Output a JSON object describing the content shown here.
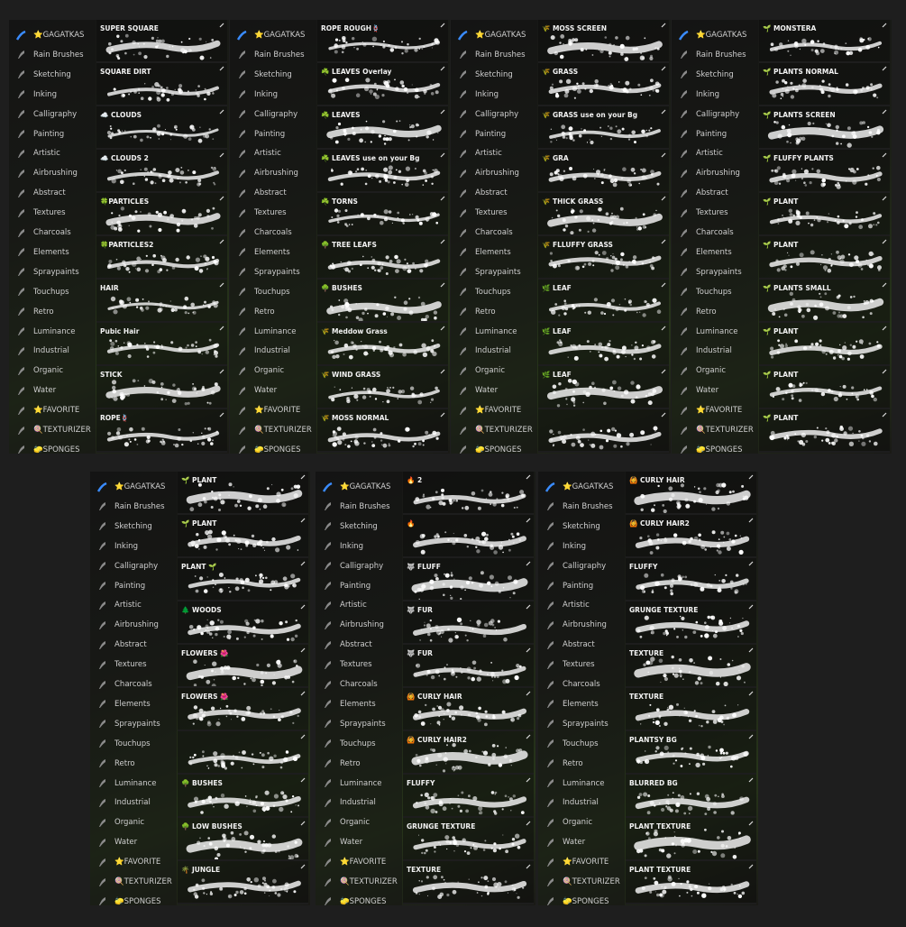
{
  "sidebar": [
    "⭐GAGATKAS",
    "Rain Brushes",
    "Sketching",
    "Inking",
    "Calligraphy",
    "Painting",
    "Artistic",
    "Airbrushing",
    "Abstract",
    "Textures",
    "Charcoals",
    "Elements",
    "Spraypaints",
    "Touchups",
    "Retro",
    "Luminance",
    "Industrial",
    "Organic",
    "Water",
    "⭐FAVORITE",
    "🍭TEXTURIZER",
    "🧽SPONGES"
  ],
  "panels": [
    {
      "brushes": [
        "SUPER SQUARE",
        "SQUARE DIRT",
        "☁️ CLOUDS",
        "☁️ CLOUDS 2",
        "🍀PARTICLES",
        "🍀PARTICLES2",
        "HAIR",
        "Pubic Hair",
        "STICK",
        "ROPE🪢"
      ]
    },
    {
      "brushes": [
        "ROPE ROUGH🪢",
        "☘️ LEAVES Overlay",
        "☘️ LEAVES",
        "☘️ LEAVES use on your Bg",
        "☘️ TORNS",
        "🌳 TREE LEAFS",
        "🌳 BUSHES",
        "🌾 Meddow Grass",
        "🌾 WIND GRASS",
        "🌾 MOSS NORMAL"
      ]
    },
    {
      "brushes": [
        "🌾 MOSS SCREEN",
        "🌾 GRASS",
        "🌾 GRASS use on your Bg",
        "🌾 GRA",
        "🌾 THICK GRASS",
        "🌾 FLLUFFY GRASS",
        "🌿 LEAF",
        "🌿 LEAF",
        "🌿 LEAF",
        null
      ]
    },
    {
      "brushes": [
        "🌱 MONSTERA",
        "🌱 PLANTS NORMAL",
        "🌱 PLANTS SCREEN",
        "🌱 FLUFFY PLANTS",
        "🌱 PLANT",
        "🌱 PLANT",
        "🌱 PLANTS SMALL",
        "🌱 PLANT",
        "🌱 PLANT",
        "🌱 PLANT"
      ]
    },
    {
      "brushes": [
        "🌱 PLANT",
        "🌱 PLANT",
        "PLANT 🌱",
        "🌲 WOODS",
        "FLOWERS 🌺",
        "FLOWERS 🌺",
        null,
        "🌳 BUSHES",
        "🌳 LOW BUSHES",
        "🌴 JUNGLE"
      ]
    },
    {
      "brushes": [
        "🔥 2",
        "🔥",
        "🐺 FLUFF",
        "🐺 FUR",
        "🐺 FUR",
        "🙆 CURLY HAIR",
        "🙆 CURLY HAIR2",
        "FLUFFY",
        "GRUNGE TEXTURE",
        "TEXTURE"
      ]
    },
    {
      "brushes": [
        "🙆 CURLY HAIR",
        "🙆 CURLY HAIR2",
        "FLUFFY",
        "GRUNGE TEXTURE",
        "TEXTURE",
        "TEXTURE",
        "PLANTSY BG",
        "BLURRED BG",
        "PLANT TEXTURE",
        "PLANT TEXTURE"
      ]
    }
  ]
}
